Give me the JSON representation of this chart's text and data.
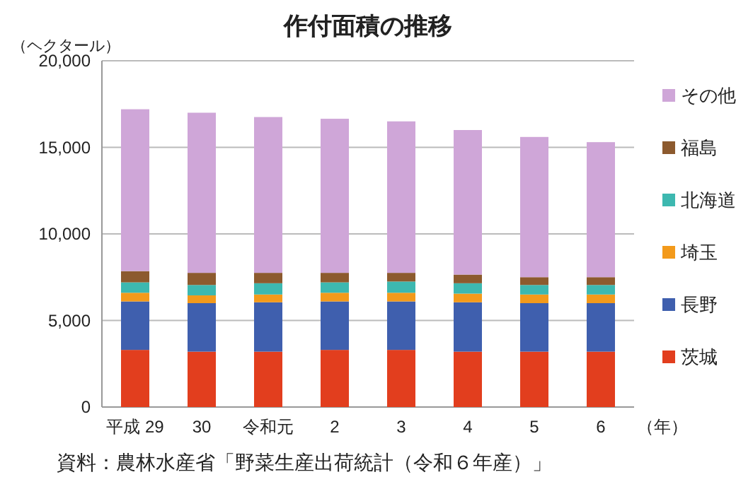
{
  "chart_data": {
    "type": "bar",
    "stacked": true,
    "title": "作付面積の推移",
    "ylabel": "（ヘクタール）",
    "xlabel": "（年）",
    "categories": [
      "平成 29",
      "30",
      "令和元",
      "2",
      "3",
      "4",
      "5",
      "6"
    ],
    "series": [
      {
        "name": "茨城",
        "color": "#e23e1e",
        "values": [
          3300,
          3200,
          3200,
          3300,
          3300,
          3200,
          3200,
          3200
        ]
      },
      {
        "name": "長野",
        "color": "#3f5fae",
        "values": [
          2800,
          2800,
          2850,
          2800,
          2800,
          2850,
          2800,
          2800
        ]
      },
      {
        "name": "埼玉",
        "color": "#f39a1b",
        "values": [
          500,
          450,
          450,
          500,
          500,
          500,
          500,
          500
        ]
      },
      {
        "name": "北海道",
        "color": "#3db8b0",
        "values": [
          600,
          600,
          650,
          600,
          650,
          600,
          550,
          550
        ]
      },
      {
        "name": "福島",
        "color": "#8c5a2e",
        "values": [
          650,
          700,
          600,
          550,
          500,
          500,
          450,
          450
        ]
      },
      {
        "name": "その他",
        "color": "#cfa6d8",
        "values": [
          9350,
          9250,
          9000,
          8900,
          8750,
          8350,
          8100,
          7800
        ]
      }
    ],
    "ylim": [
      0,
      20000
    ],
    "yticks": [
      {
        "value": 0,
        "label": "0"
      },
      {
        "value": 5000,
        "label": "5,000"
      },
      {
        "value": 10000,
        "label": "10,000"
      },
      {
        "value": 15000,
        "label": "15,000"
      },
      {
        "value": 20000,
        "label": "20,000"
      }
    ],
    "grid": "y",
    "legend": "right",
    "annotations": [
      "資料：農林水産省「野菜生産出荷統計（令和６年産）」"
    ]
  }
}
